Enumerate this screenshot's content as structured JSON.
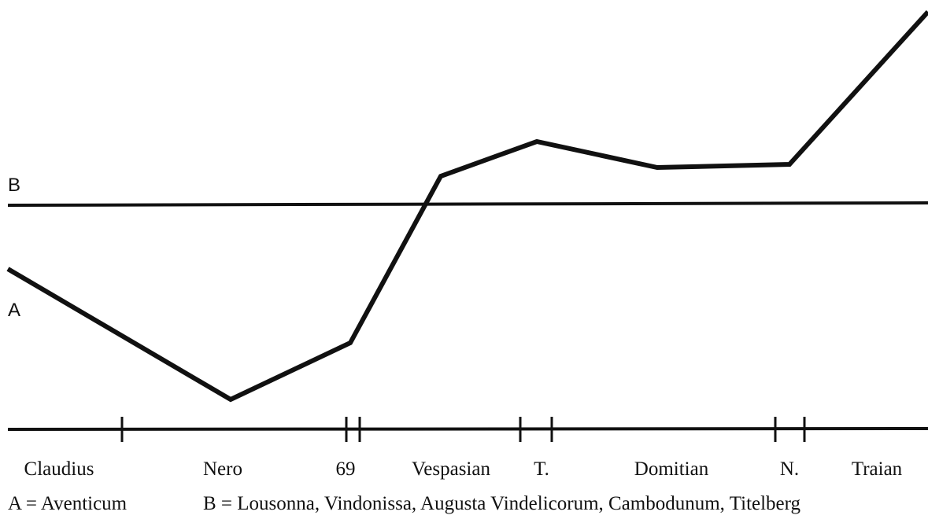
{
  "labels": {
    "b": "B",
    "a": "A"
  },
  "timeline": [
    "Claudius",
    "Nero",
    "69",
    "Vespasian",
    "T.",
    "Domitian",
    "N.",
    "Traian"
  ],
  "legend": {
    "a": "A = Aventicum",
    "b": "B = Lousonna, Vindonissa, Augusta Vindelicorum, Cambodunum, Titelberg"
  }
}
